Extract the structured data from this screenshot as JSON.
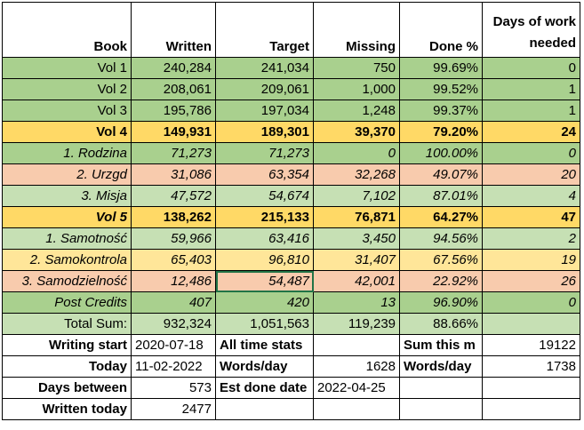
{
  "table": {
    "header": [
      "Book",
      "Written",
      "Target",
      "Missing",
      "Done %",
      "Days of work needed"
    ],
    "rows": [
      [
        "Vol 1",
        "240,284",
        "241,034",
        "750",
        "99.69%",
        "0"
      ],
      [
        "Vol 2",
        "208,061",
        "209,061",
        "1,000",
        "99.52%",
        "1"
      ],
      [
        "Vol 3",
        "195,786",
        "197,034",
        "1,248",
        "99.37%",
        "1"
      ],
      [
        "Vol 4",
        "149,931",
        "189,301",
        "39,370",
        "79.20%",
        "24"
      ],
      [
        "1. Rodzina",
        "71,273",
        "71,273",
        "0",
        "100.00%",
        "0"
      ],
      [
        "2. Urzgd",
        "31,086",
        "63,354",
        "32,268",
        "49.07%",
        "20"
      ],
      [
        "3. Misja",
        "47,572",
        "54,674",
        "7,102",
        "87.01%",
        "4"
      ],
      [
        "Vol 5",
        "138,262",
        "215,133",
        "76,871",
        "64.27%",
        "47"
      ],
      [
        "1. Samotność",
        "59,966",
        "63,416",
        "3,450",
        "94.56%",
        "2"
      ],
      [
        "2. Samokontrola",
        "65,403",
        "96,810",
        "31,407",
        "67.56%",
        "19"
      ],
      [
        "3. Samodzielność",
        "12,486",
        "54,487",
        "42,001",
        "22.92%",
        "26"
      ],
      [
        "Post Credits",
        "407",
        "420",
        "13",
        "96.90%",
        "0"
      ],
      [
        "Total Sum:",
        "932,324",
        "1,051,563",
        "119,239",
        "88.66%",
        null
      ]
    ],
    "stats": [
      [
        "Writing start",
        "2020-07-18",
        "All time stats",
        null,
        "Sum this m",
        "19122"
      ],
      [
        "Today",
        "11-02-2022",
        "Words/day",
        "1628",
        "Words/day",
        "1738"
      ],
      [
        "Days between",
        "573",
        "Est done date",
        "2022-04-25",
        null,
        null
      ],
      [
        "Written today",
        "2477",
        null,
        null,
        null,
        null
      ]
    ]
  }
}
